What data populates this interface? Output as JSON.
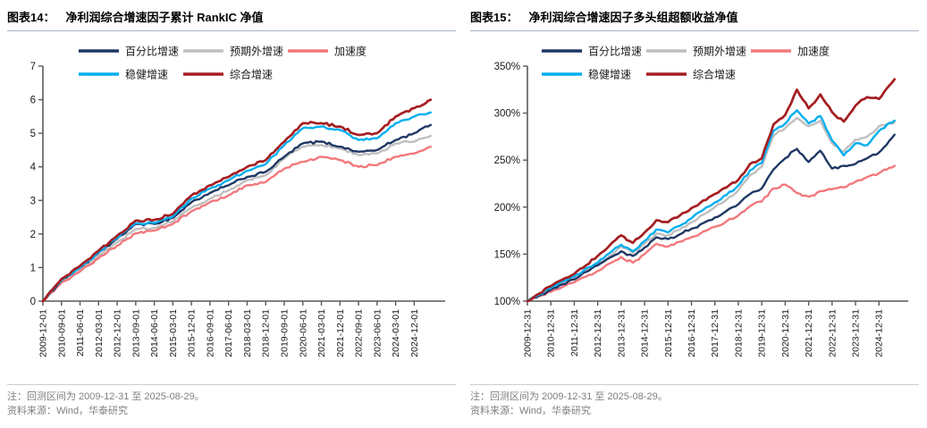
{
  "panels": [
    {
      "label": "图表14：",
      "title": "净利润综合增速因子累计 RankIC 净值",
      "note": "注：回测区间为 2009-12-31 至 2025-08-29。",
      "source": "资料来源：Wind，华泰研究",
      "chart_data": {
        "type": "line",
        "grid": false,
        "legend_position": "top-left-two-rows",
        "ylim": [
          0,
          7
        ],
        "yticks": [
          0,
          1,
          2,
          3,
          4,
          5,
          6,
          7
        ],
        "ytick_suffix": "",
        "x_tick_labels": [
          "2009-12-01",
          "2010-09-01",
          "2011-06-01",
          "2012-03-01",
          "2012-12-01",
          "2013-09-01",
          "2014-06-01",
          "2015-03-01",
          "2015-12-01",
          "2016-09-01",
          "2017-06-01",
          "2018-03-01",
          "2018-12-01",
          "2019-09-01",
          "2020-06-01",
          "2021-03-01",
          "2021-12-01",
          "2022-09-01",
          "2023-06-01",
          "2024-03-01",
          "2024-12-01"
        ],
        "x": [
          "2009-12-01",
          "2010-09-01",
          "2011-06-01",
          "2012-03-01",
          "2012-12-01",
          "2013-09-01",
          "2014-06-01",
          "2015-03-01",
          "2015-12-01",
          "2016-09-01",
          "2017-06-01",
          "2018-03-01",
          "2018-12-01",
          "2019-09-01",
          "2020-06-01",
          "2021-03-01",
          "2021-12-01",
          "2022-09-01",
          "2023-06-01",
          "2024-03-01",
          "2024-12-01",
          "2025-08-29"
        ],
        "series": [
          {
            "name": "百分比增速",
            "color": "#1F3864",
            "values": [
              0,
              0.63,
              1.0,
              1.44,
              1.86,
              2.3,
              2.3,
              2.48,
              2.95,
              3.22,
              3.45,
              3.7,
              3.85,
              4.3,
              4.7,
              4.75,
              4.6,
              4.45,
              4.5,
              4.8,
              5.0,
              5.25
            ]
          },
          {
            "name": "预期外增速",
            "color": "#BFBFBF",
            "values": [
              0,
              0.58,
              0.93,
              1.35,
              1.75,
              2.15,
              2.18,
              2.38,
              2.78,
              3.05,
              3.3,
              3.6,
              3.75,
              4.25,
              4.6,
              4.65,
              4.55,
              4.35,
              4.4,
              4.7,
              4.75,
              4.92
            ]
          },
          {
            "name": "加速度",
            "color": "#F2787D",
            "values": [
              0,
              0.55,
              0.88,
              1.28,
              1.65,
              2.02,
              2.1,
              2.3,
              2.68,
              2.95,
              3.15,
              3.45,
              3.55,
              3.95,
              4.15,
              4.3,
              4.2,
              4.0,
              4.05,
              4.3,
              4.4,
              4.6
            ]
          },
          {
            "name": "稳健增速",
            "color": "#00AEEF",
            "values": [
              0,
              0.62,
              1.0,
              1.45,
              1.88,
              2.32,
              2.33,
              2.52,
              3.05,
              3.35,
              3.6,
              3.88,
              4.08,
              4.65,
              5.15,
              5.2,
              5.1,
              4.8,
              4.85,
              5.3,
              5.5,
              5.62
            ]
          },
          {
            "name": "综合增速",
            "color": "#A51E22",
            "values": [
              0,
              0.66,
              1.05,
              1.5,
              1.95,
              2.4,
              2.42,
              2.6,
              3.15,
              3.45,
              3.7,
              4.0,
              4.2,
              4.75,
              5.3,
              5.3,
              5.2,
              4.95,
              5.0,
              5.5,
              5.75,
              6.0
            ]
          }
        ]
      }
    },
    {
      "label": "图表15：",
      "title": "净利润综合增速因子多头组超额收益净值",
      "note": "注：回测区间为 2009-12-31 至 2025-08-29。",
      "source": "资料来源：Wind，华泰研究",
      "chart_data": {
        "type": "line",
        "grid": false,
        "legend_position": "top-left-two-rows",
        "ylim": [
          100,
          350
        ],
        "yticks": [
          100,
          150,
          200,
          250,
          300,
          350
        ],
        "ytick_suffix": "%",
        "x_tick_labels": [
          "2009-12-31",
          "2010-12-31",
          "2011-12-31",
          "2012-12-31",
          "2013-12-31",
          "2014-12-31",
          "2015-12-31",
          "2016-12-31",
          "2017-12-31",
          "2018-12-31",
          "2019-12-31",
          "2020-12-31",
          "2021-12-31",
          "2022-12-31",
          "2023-12-31",
          "2024-12-31"
        ],
        "x": [
          "2009-12-31",
          "2010-06-30",
          "2010-12-31",
          "2011-06-30",
          "2011-12-31",
          "2012-06-30",
          "2012-12-31",
          "2013-06-30",
          "2013-12-31",
          "2014-06-30",
          "2014-12-31",
          "2015-06-30",
          "2015-12-31",
          "2016-06-30",
          "2016-12-31",
          "2017-06-30",
          "2017-12-31",
          "2018-06-30",
          "2018-12-31",
          "2019-06-30",
          "2019-12-31",
          "2020-06-30",
          "2020-12-31",
          "2021-06-30",
          "2021-12-31",
          "2022-06-30",
          "2022-12-31",
          "2023-06-30",
          "2023-12-31",
          "2024-06-30",
          "2024-12-31",
          "2025-08-29"
        ],
        "series": [
          {
            "name": "百分比增速",
            "color": "#1F3864",
            "values": [
              100,
              106,
              112,
              118,
              123,
              131,
              138,
              146,
              153,
              148,
              157,
              168,
              166,
              171,
              177,
              183,
              189,
              196,
              203,
              214,
              220,
              240,
              252,
              262,
              248,
              260,
              241,
              244,
              246,
              252,
              258,
              277
            ]
          },
          {
            "name": "预期外增速",
            "color": "#BFBFBF",
            "values": [
              100,
              106,
              113,
              119,
              124,
              132,
              139,
              148,
              158,
              151,
              161,
              172,
              170,
              176,
              184,
              192,
              200,
              208,
              218,
              234,
              243,
              276,
              284,
              295,
              286,
              292,
              268,
              259,
              272,
              275,
              286,
              290
            ]
          },
          {
            "name": "加速度",
            "color": "#F2787D",
            "values": [
              100,
              105,
              110,
              115,
              120,
              126,
              132,
              140,
              147,
              141,
              150,
              161,
              158,
              163,
              168,
              174,
              179,
              185,
              191,
              201,
              206,
              220,
              224,
              215,
              211,
              217,
              219,
              221,
              227,
              232,
              236,
              244
            ]
          },
          {
            "name": "稳健增速",
            "color": "#00AEEF",
            "values": [
              100,
              107,
              114,
              121,
              126,
              135,
              141,
              151,
              160,
              153,
              164,
              176,
              173,
              180,
              188,
              197,
              205,
              213,
              223,
              239,
              247,
              281,
              289,
              303,
              289,
              297,
              271,
              255,
              268,
              266,
              281,
              292
            ]
          },
          {
            "name": "综合增速",
            "color": "#A51E22",
            "values": [
              100,
              108,
              116,
              123,
              129,
              138,
              148,
              159,
              170,
              162,
              173,
              186,
              184,
              191,
              199,
              207,
              214,
              221,
              229,
              246,
              252,
              288,
              298,
              325,
              305,
              320,
              301,
              291,
              308,
              317,
              315,
              336
            ]
          }
        ]
      }
    }
  ]
}
